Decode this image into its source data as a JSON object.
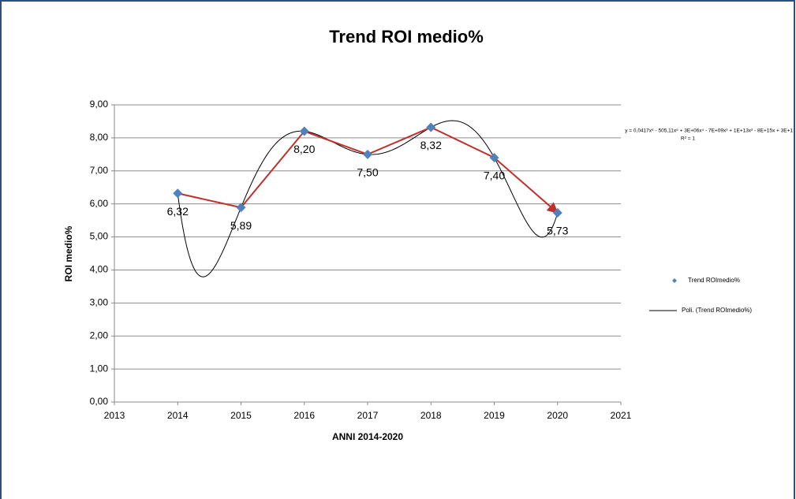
{
  "chart_data": {
    "type": "scatter",
    "title": "Trend ROI medio%",
    "x_label": "ANNI 2014-2020",
    "y_label": "ROI medio%",
    "x": [
      2014,
      2015,
      2016,
      2017,
      2018,
      2019,
      2020
    ],
    "series": [
      {
        "name": "Trend ROImedio%",
        "color": "#4f81bd",
        "line_color": "#c0302a",
        "values": [
          6.32,
          5.89,
          8.2,
          7.5,
          8.32,
          7.4,
          5.73
        ],
        "value_labels": [
          "6,32",
          "5,89",
          "8,20",
          "7,50",
          "8,32",
          "7,40",
          "5,73"
        ]
      }
    ],
    "trendline": {
      "name": "Poli. (Trend ROImedio%)",
      "color": "#000000",
      "equation": "y = 0,0417x⁶ - 505,11x⁵ + 3E+06x⁴ - 7E+09x³ + 1E+13x² - 8E+15x + 3E+1",
      "r_squared": "R² = 1"
    },
    "xlim": [
      2013,
      2021
    ],
    "xticks": [
      2013,
      2014,
      2015,
      2016,
      2017,
      2018,
      2019,
      2020,
      2021
    ],
    "ylim": [
      0,
      9
    ],
    "yticks": [
      {
        "value": 0,
        "label": "0,00"
      },
      {
        "value": 1,
        "label": "1,00"
      },
      {
        "value": 2,
        "label": "2,00"
      },
      {
        "value": 3,
        "label": "3,00"
      },
      {
        "value": 4,
        "label": "4,00"
      },
      {
        "value": 5,
        "label": "5,00"
      },
      {
        "value": 6,
        "label": "6,00"
      },
      {
        "value": 7,
        "label": "7,00"
      },
      {
        "value": 8,
        "label": "8,00"
      },
      {
        "value": 9,
        "label": "9,00"
      }
    ],
    "grid": true,
    "legend": "right"
  }
}
